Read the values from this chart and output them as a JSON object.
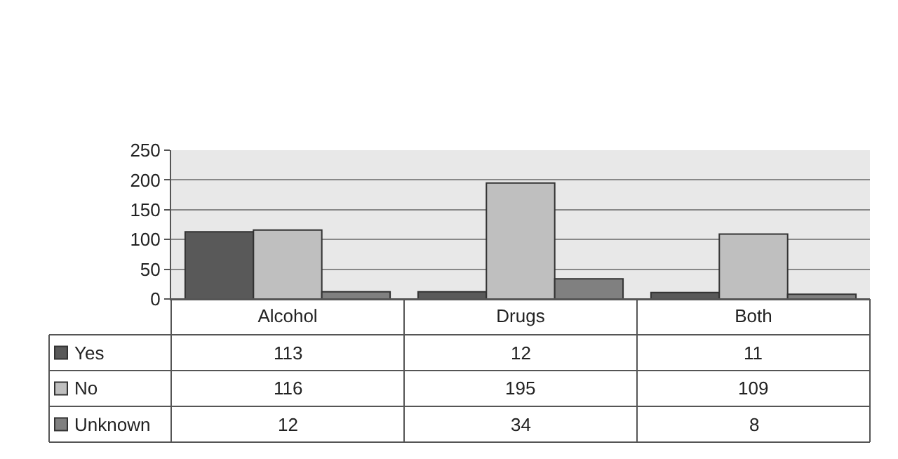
{
  "chart_data": {
    "type": "bar",
    "categories": [
      "Alcohol",
      "Drugs",
      "Both"
    ],
    "series": [
      {
        "name": "Yes",
        "color": "#595959",
        "values": [
          113,
          12,
          11
        ]
      },
      {
        "name": "No",
        "color": "#bfbfbf",
        "values": [
          116,
          195,
          109
        ]
      },
      {
        "name": "Unknown",
        "color": "#808080",
        "values": [
          12,
          34,
          8
        ]
      }
    ],
    "ylim": [
      0,
      250
    ],
    "yticks": [
      0,
      50,
      100,
      150,
      200,
      250
    ],
    "grid": "y",
    "legend": "bottom",
    "data_labels": true
  }
}
